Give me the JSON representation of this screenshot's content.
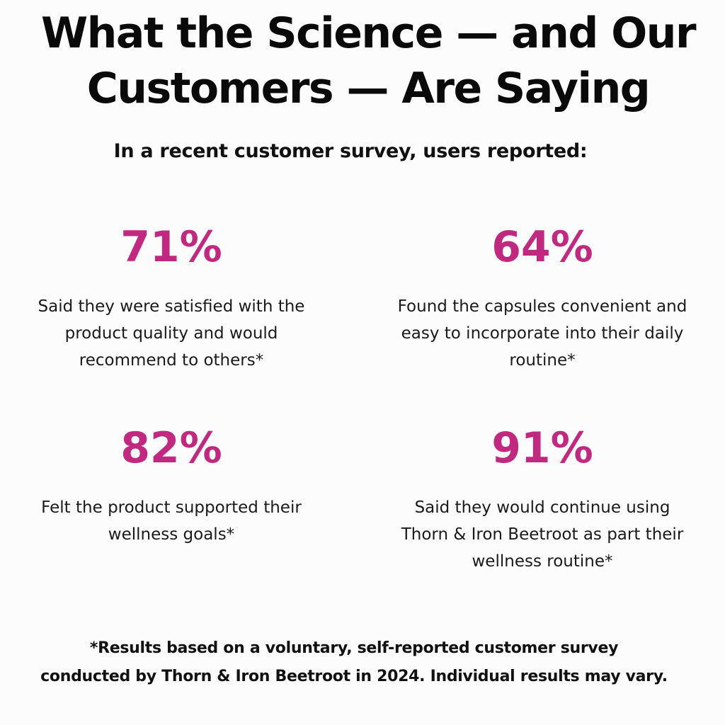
{
  "header": {
    "title_line1": "What the Science — and Our",
    "title_line2": "Customers — Are Saying",
    "subtitle": "In a recent customer survey, users reported:"
  },
  "stats": [
    {
      "value": "71%",
      "description": "Said they were satisfied with the product quality and would recommend to others*"
    },
    {
      "value": "64%",
      "description": "Found the capsules convenient and easy to incorporate into their daily routine*"
    },
    {
      "value": "82%",
      "description": "Felt the product supported their wellness goals*"
    },
    {
      "value": "91%",
      "description": "Said they would continue using Thorn & Iron Beetroot as part their wellness routine*"
    }
  ],
  "footnote": {
    "line1": "*Results based on a voluntary, self-reported customer survey",
    "line2": "conducted by Thorn & Iron Beetroot in 2024. Individual results may vary."
  },
  "colors": {
    "accent": "#c1287f",
    "text": "#111111",
    "background": "#fcfcfc"
  }
}
